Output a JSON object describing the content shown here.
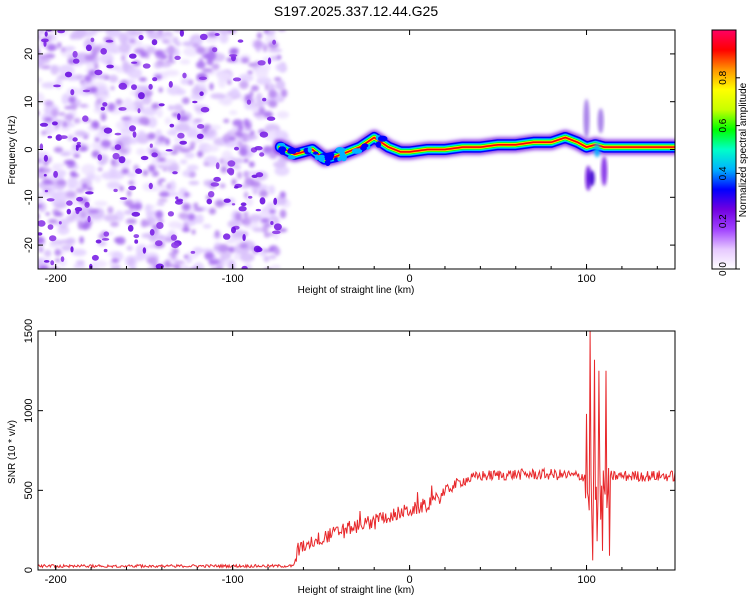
{
  "title": "S197.2025.337.12.44.G25",
  "chart_data": [
    {
      "type": "heatmap",
      "name": "spectrogram",
      "xlabel": "Height of straight line (km)",
      "ylabel": "Frequency (Hz)",
      "xlim": [
        -210,
        150
      ],
      "ylim": [
        -25,
        25
      ],
      "xticks": [
        -200,
        -100,
        0,
        100
      ],
      "xtick_labels": [
        "-200",
        "-100",
        "0",
        "100"
      ],
      "yticks": [
        -20,
        -10,
        0,
        10,
        20
      ],
      "ytick_labels": [
        "-20",
        "-10",
        "0",
        "10",
        "20"
      ],
      "noise_region_x": [
        -210,
        -73
      ],
      "signal_track": {
        "x": [
          -73,
          -65,
          -55,
          -48,
          -42,
          -35,
          -28,
          -20,
          -12,
          -5,
          0,
          10,
          20,
          30,
          40,
          50,
          60,
          70,
          80,
          88,
          95,
          100,
          105,
          110,
          120,
          130,
          150
        ],
        "freq": [
          0.5,
          -1,
          0,
          -2,
          -1.5,
          -0.5,
          0.5,
          2.5,
          0.5,
          -0.5,
          -0.5,
          0,
          0,
          0.5,
          0.5,
          1,
          1,
          1.5,
          1.5,
          2.5,
          1.5,
          0.5,
          1,
          0.5,
          0.5,
          0.5,
          0.5
        ]
      },
      "colorbar": {
        "label": "Normalized spectral amplitude",
        "range": [
          0,
          1
        ],
        "ticks": [
          0.0,
          0.2,
          0.4,
          0.6,
          0.8
        ],
        "tick_labels": [
          "0.0",
          "0.2",
          "0.4",
          "0.6",
          "0.8"
        ],
        "colors": [
          "#ffffff",
          "#e6c8ff",
          "#a040ff",
          "#7000e0",
          "#0000ff",
          "#00b4ff",
          "#00ffc8",
          "#00ff00",
          "#c8ff00",
          "#ffff00",
          "#ff9600",
          "#ff0000",
          "#ff0064"
        ]
      }
    },
    {
      "type": "line",
      "name": "snr",
      "xlabel": "Height of straight line (km)",
      "ylabel": "SNR (10 * v/v)",
      "xlim": [
        -210,
        150
      ],
      "ylim": [
        0,
        1500
      ],
      "xticks": [
        -200,
        -100,
        0,
        100
      ],
      "xtick_labels": [
        "-200",
        "-100",
        "0",
        "100"
      ],
      "yticks": [
        0,
        500,
        1000,
        1500
      ],
      "ytick_labels": [
        "0",
        "500",
        "1000",
        "1500"
      ],
      "color": "#e8282b",
      "profile": {
        "x": [
          -210,
          -65,
          -63,
          -55,
          -45,
          -35,
          -25,
          -15,
          -5,
          5,
          15,
          22,
          30,
          40,
          60,
          80,
          95,
          100,
          150
        ],
        "y": [
          25,
          25,
          130,
          180,
          220,
          260,
          290,
          330,
          360,
          390,
          440,
          510,
          560,
          590,
          600,
          600,
          590,
          590,
          590
        ]
      },
      "spikes": [
        {
          "x": 100,
          "y": 980
        },
        {
          "x": 102,
          "y": 1500
        },
        {
          "x": 103.5,
          "y": 60
        },
        {
          "x": 104.5,
          "y": 1320
        },
        {
          "x": 106,
          "y": 180
        },
        {
          "x": 107,
          "y": 1250
        },
        {
          "x": 109,
          "y": 120
        },
        {
          "x": 111,
          "y": 1250
        },
        {
          "x": 113,
          "y": 90
        }
      ]
    }
  ]
}
